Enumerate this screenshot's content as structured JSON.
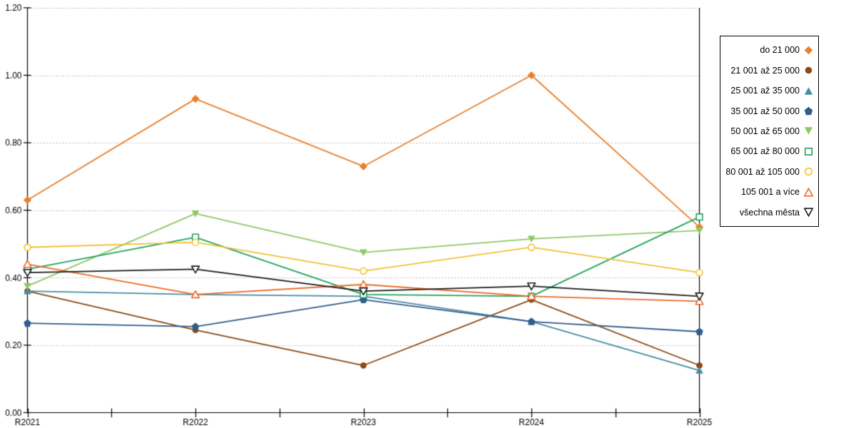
{
  "chart_data": {
    "type": "line",
    "title": "",
    "xlabel": "",
    "ylabel": "",
    "categories": [
      "R2021",
      "R2022",
      "R2023",
      "R2024",
      "R2025"
    ],
    "series": [
      {
        "name": "do 21 000",
        "marker": "diamond",
        "filled": true,
        "color": "#E8802C",
        "values": [
          0.63,
          0.93,
          0.73,
          1.0,
          0.55
        ]
      },
      {
        "name": "21 001 až 25 000",
        "marker": "circle",
        "filled": true,
        "color": "#8B4A14",
        "values": [
          0.36,
          0.245,
          0.14,
          0.335,
          0.14
        ]
      },
      {
        "name": "25 001 až 35 000",
        "marker": "triangle-up",
        "filled": true,
        "color": "#4A8BA5",
        "values": [
          0.36,
          0.35,
          0.345,
          0.27,
          0.125
        ]
      },
      {
        "name": "35 001 až 50 000",
        "marker": "pentagon",
        "filled": true,
        "color": "#305D8C",
        "values": [
          0.265,
          0.255,
          0.335,
          0.27,
          0.24
        ]
      },
      {
        "name": "50 001 až 65 000",
        "marker": "triangle-down",
        "filled": true,
        "color": "#8FC866",
        "values": [
          0.375,
          0.59,
          0.475,
          0.515,
          0.54
        ]
      },
      {
        "name": "65 001 až 80 000",
        "marker": "square",
        "filled": false,
        "color": "#22A45C",
        "values": [
          0.425,
          0.52,
          0.35,
          0.345,
          0.58
        ]
      },
      {
        "name": "80 001 až 105 000",
        "marker": "circle",
        "filled": false,
        "color": "#F1C232",
        "values": [
          0.49,
          0.505,
          0.42,
          0.49,
          0.415
        ]
      },
      {
        "name": "105 001 a více",
        "marker": "triangle-up",
        "filled": false,
        "color": "#EB6A28",
        "values": [
          0.44,
          0.35,
          0.38,
          0.345,
          0.33
        ]
      },
      {
        "name": "všechna města",
        "marker": "triangle-down",
        "filled": false,
        "color": "#1A1A1A",
        "values": [
          0.415,
          0.425,
          0.36,
          0.375,
          0.345
        ]
      }
    ],
    "ylim": [
      0.0,
      1.2
    ],
    "ytick_step": 0.2,
    "ytick_labels": [
      "0.00",
      "0.20",
      "0.40",
      "0.60",
      "0.80",
      "1.00",
      "1.20"
    ],
    "xtick_labels": [
      "R2021",
      "R2022",
      "R2023",
      "R2024",
      "R2025"
    ],
    "grid": "horizontal-dashed",
    "legend_position": "right"
  },
  "style_colors": {
    "axis": "#000000",
    "gridline": "#B9B9B9",
    "tick_text": "#000000",
    "background": "#FFFFFF"
  }
}
